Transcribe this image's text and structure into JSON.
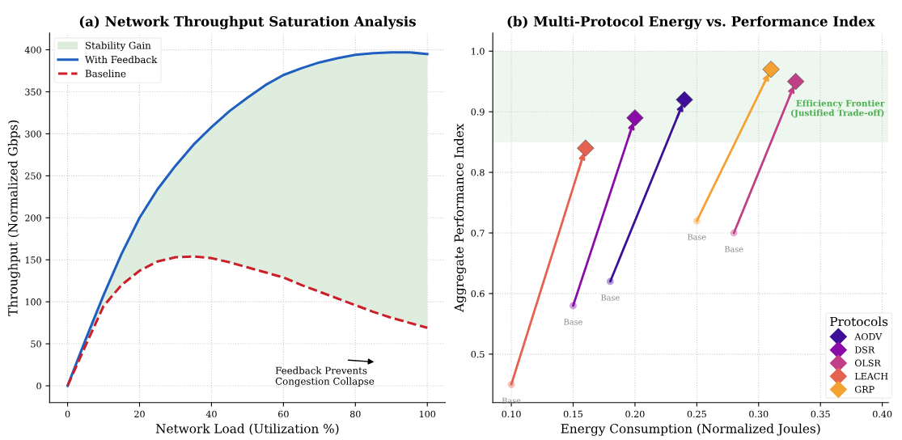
{
  "chart_data": [
    {
      "type": "line",
      "title": "(a) Network Throughput Saturation Analysis",
      "xlabel": "Network Load (Utilization %)",
      "ylabel": "Throughput (Normalized Gbps)",
      "x": [
        0,
        5,
        10,
        15,
        20,
        25,
        30,
        35,
        40,
        45,
        50,
        55,
        60,
        65,
        70,
        75,
        80,
        85,
        90,
        95,
        100
      ],
      "series": [
        {
          "name": "With Feedback",
          "color": "#1f5fbf",
          "line_style": "solid",
          "values": [
            0,
            55,
            108,
            157,
            200,
            234,
            262,
            287,
            308,
            327,
            343,
            358,
            370,
            378,
            385,
            390,
            394,
            396,
            397,
            397,
            395
          ]
        },
        {
          "name": "Baseline",
          "color": "#cc1f2a",
          "line_style": "dashed",
          "values": [
            0,
            48,
            95,
            120,
            137,
            148,
            153,
            154,
            152,
            147,
            141,
            135,
            129,
            120,
            112,
            104,
            96,
            88,
            81,
            75,
            69
          ]
        },
        {
          "name": "Stability Gain",
          "type": "area",
          "color": "#dcebdc",
          "values": [
            null,
            null,
            null,
            null,
            null,
            null,
            null,
            null,
            null,
            null,
            null,
            null,
            null,
            null,
            null,
            null,
            null,
            null,
            null,
            null,
            null
          ],
          "lower": [
            0,
            48,
            95,
            120,
            137,
            148,
            153,
            154,
            152,
            147,
            141,
            135,
            129,
            120,
            112,
            104,
            96,
            88,
            81,
            75,
            69
          ],
          "upper": [
            0,
            55,
            108,
            157,
            200,
            234,
            262,
            287,
            308,
            327,
            343,
            358,
            370,
            378,
            385,
            390,
            394,
            396,
            397,
            397,
            395
          ]
        }
      ],
      "xlim": [
        -5,
        105
      ],
      "ylim": [
        -20,
        420
      ],
      "xticks": [
        0,
        20,
        40,
        60,
        80,
        100
      ],
      "yticks": [
        0,
        50,
        100,
        150,
        200,
        250,
        300,
        350,
        400
      ],
      "grid": true,
      "legend": "top left",
      "marker": "none",
      "annotations": [
        "Feedback Prevents\nCongestion Collapse"
      ]
    },
    {
      "type": "scatter",
      "title": "(b) Multi-Protocol Energy vs. Performance Index",
      "xlabel": "Energy Consumption (Normalized Joules)",
      "ylabel": "Aggregate Performance Index",
      "legend_title": "Protocols",
      "series": [
        {
          "name": "AODV",
          "type": "line",
          "color": "#3d0e96",
          "marker": [
            "circle",
            "diamond"
          ],
          "x": [
            0.18,
            0.24
          ],
          "values": [
            0.62,
            0.92
          ]
        },
        {
          "name": "DSR",
          "type": "line",
          "color": "#8a0ca6",
          "marker": [
            "circle",
            "diamond"
          ],
          "x": [
            0.15,
            0.2
          ],
          "values": [
            0.58,
            0.89
          ]
        },
        {
          "name": "OLSR",
          "type": "line",
          "color": "#c03f86",
          "marker": [
            "circle",
            "diamond"
          ],
          "x": [
            0.28,
            0.33
          ],
          "values": [
            0.7,
            0.95
          ]
        },
        {
          "name": "LEACH",
          "type": "line",
          "color": "#e4624f",
          "marker": [
            "circle",
            "diamond"
          ],
          "x": [
            0.1,
            0.16
          ],
          "values": [
            0.45,
            0.84
          ]
        },
        {
          "name": "GRP",
          "type": "line",
          "color": "#f5a132",
          "marker": [
            "circle",
            "diamond"
          ],
          "x": [
            0.25,
            0.31
          ],
          "values": [
            0.72,
            0.97
          ]
        }
      ],
      "bands": [
        {
          "axis": "y",
          "from": 0.85,
          "to": 1.0,
          "label": "Efficiency Frontier\n(Justified Trade-off)",
          "color": "#eef7ef"
        }
      ],
      "annotations": [
        {
          "text": "Base",
          "x": 0.18,
          "y": 0.62
        },
        {
          "text": "Base",
          "x": 0.15,
          "y": 0.58
        },
        {
          "text": "Base",
          "x": 0.28,
          "y": 0.7
        },
        {
          "text": "Base",
          "x": 0.1,
          "y": 0.45
        },
        {
          "text": "Base",
          "x": 0.25,
          "y": 0.72
        }
      ],
      "xlim": [
        0.085,
        0.405
      ],
      "ylim": [
        0.42,
        1.03
      ],
      "xticks": [
        {
          "value": 0.1,
          "label": "0.10"
        },
        {
          "value": 0.15,
          "label": "0.15"
        },
        {
          "value": 0.2,
          "label": "0.20"
        },
        {
          "value": 0.25,
          "label": "0.25"
        },
        {
          "value": 0.3,
          "label": "0.30"
        },
        {
          "value": 0.35,
          "label": "0.35"
        },
        {
          "value": 0.4,
          "label": "0.40"
        }
      ],
      "yticks": [
        0.5,
        0.6,
        0.7,
        0.8,
        0.9,
        {
          "value": 1.0,
          "label": "1.0"
        }
      ],
      "grid": true,
      "legend": "lower right"
    }
  ]
}
